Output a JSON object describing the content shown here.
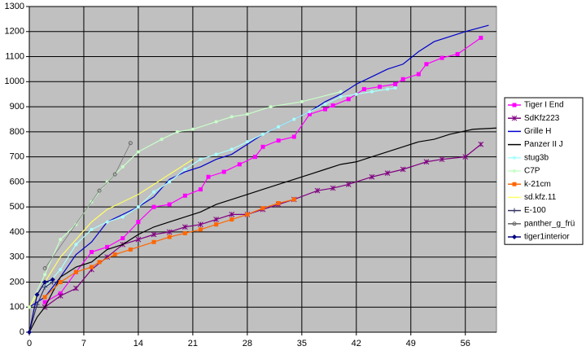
{
  "chart_data": {
    "type": "line",
    "xlim": [
      0,
      60
    ],
    "ylim": [
      0,
      1300
    ],
    "xticks": [
      0,
      7,
      14,
      21,
      28,
      35,
      42,
      49,
      56
    ],
    "yticks": [
      0,
      100,
      200,
      300,
      400,
      500,
      600,
      700,
      800,
      900,
      1000,
      1100,
      1200,
      1300
    ],
    "grid": true,
    "legend": "right",
    "plot_background": "#c0c0c0",
    "series": [
      {
        "name": "Tiger I End",
        "color": "#ff00ff",
        "marker": "square",
        "x": [
          2,
          4,
          6,
          8,
          10,
          12,
          14,
          16,
          18,
          20,
          22,
          23,
          25,
          27,
          29,
          30,
          32,
          34,
          36,
          38,
          39,
          41,
          43,
          45,
          47,
          48,
          50,
          51,
          53,
          55,
          58
        ],
        "values": [
          120,
          155,
          240,
          320,
          340,
          375,
          440,
          500,
          510,
          545,
          570,
          620,
          640,
          670,
          700,
          740,
          765,
          780,
          870,
          890,
          905,
          930,
          970,
          980,
          990,
          1010,
          1030,
          1070,
          1095,
          1110,
          1175
        ]
      },
      {
        "name": "SdKfz223",
        "color": "#800080",
        "marker": "star",
        "x": [
          2,
          4,
          6,
          8,
          10,
          12,
          14,
          16,
          18,
          20,
          22,
          24,
          26,
          28,
          30,
          32,
          34,
          37,
          39,
          41,
          44,
          46,
          48,
          51,
          53,
          56,
          58
        ],
        "values": [
          100,
          145,
          175,
          250,
          300,
          350,
          370,
          390,
          400,
          420,
          430,
          450,
          470,
          470,
          490,
          510,
          530,
          565,
          575,
          590,
          620,
          635,
          650,
          680,
          690,
          700,
          750
        ]
      },
      {
        "name": "Grille H",
        "color": "#0000cc",
        "marker": "none",
        "x": [
          0,
          2,
          4,
          6,
          8,
          10,
          12,
          14,
          16,
          18,
          20,
          22,
          24,
          26,
          28,
          30,
          32,
          34,
          36,
          38,
          40,
          42,
          44,
          46,
          48,
          50,
          52,
          54,
          56,
          59
        ],
        "values": [
          100,
          140,
          220,
          310,
          360,
          440,
          470,
          500,
          540,
          610,
          640,
          660,
          690,
          710,
          750,
          790,
          820,
          850,
          880,
          920,
          950,
          990,
          1020,
          1050,
          1070,
          1120,
          1160,
          1180,
          1200,
          1225
        ]
      },
      {
        "name": "Panzer II J",
        "color": "#000000",
        "marker": "none",
        "x": [
          0,
          1,
          2,
          4,
          6,
          8,
          10,
          12,
          14,
          16,
          18,
          20,
          22,
          24,
          26,
          28,
          30,
          32,
          34,
          36,
          38,
          40,
          42,
          44,
          46,
          48,
          50,
          52,
          54,
          57,
          60
        ],
        "values": [
          0,
          60,
          100,
          220,
          260,
          280,
          330,
          350,
          390,
          420,
          440,
          460,
          480,
          510,
          530,
          550,
          570,
          590,
          610,
          630,
          650,
          670,
          680,
          700,
          720,
          740,
          760,
          770,
          790,
          810,
          815
        ]
      },
      {
        "name": "stug3b",
        "color": "#aaffff",
        "marker": "circle",
        "x": [
          2,
          4,
          6,
          8,
          10,
          12,
          14,
          16,
          18,
          20,
          22,
          24,
          26,
          28,
          30,
          32,
          34,
          36,
          38,
          40,
          42,
          44,
          46,
          47
        ],
        "values": [
          180,
          250,
          350,
          410,
          440,
          460,
          500,
          560,
          600,
          650,
          690,
          710,
          730,
          760,
          790,
          820,
          850,
          880,
          910,
          940,
          950,
          960,
          970,
          975
        ]
      },
      {
        "name": "C7P",
        "color": "#c8ffc8",
        "marker": "circle",
        "x": [
          0,
          2,
          4,
          6,
          8,
          10,
          12,
          14,
          17,
          19,
          21,
          24,
          26,
          28,
          31,
          35,
          40
        ],
        "values": [
          100,
          230,
          370,
          430,
          520,
          600,
          660,
          720,
          770,
          800,
          810,
          840,
          860,
          870,
          900,
          920,
          960
        ]
      },
      {
        "name": "k-21cm",
        "color": "#ff6600",
        "marker": "square",
        "x": [
          2,
          4,
          6,
          8,
          9,
          11,
          13,
          16,
          18,
          20,
          22,
          24,
          26,
          28,
          30,
          32,
          34
        ],
        "values": [
          140,
          200,
          240,
          260,
          280,
          310,
          330,
          360,
          380,
          395,
          410,
          430,
          450,
          470,
          495,
          515,
          530
        ]
      },
      {
        "name": "sd.kfz.11",
        "color": "#ffff66",
        "marker": "none",
        "x": [
          0,
          2,
          4,
          6,
          8,
          10,
          12,
          14,
          16,
          18,
          21
        ],
        "values": [
          100,
          200,
          300,
          370,
          440,
          490,
          520,
          550,
          590,
          630,
          690
        ]
      },
      {
        "name": "E-100",
        "color": "#333366",
        "marker": "plus",
        "x": [
          0,
          1,
          2,
          3
        ],
        "values": [
          0,
          110,
          180,
          200
        ]
      },
      {
        "name": "panther_g_frü",
        "color": "#666666",
        "marker": "hollow",
        "x": [
          2,
          9,
          11,
          13
        ],
        "values": [
          255,
          565,
          630,
          755
        ]
      },
      {
        "name": "tiger1interior",
        "color": "#000080",
        "marker": "diamond",
        "x": [
          0,
          1,
          2,
          3
        ],
        "values": [
          0,
          150,
          200,
          210
        ]
      }
    ]
  }
}
